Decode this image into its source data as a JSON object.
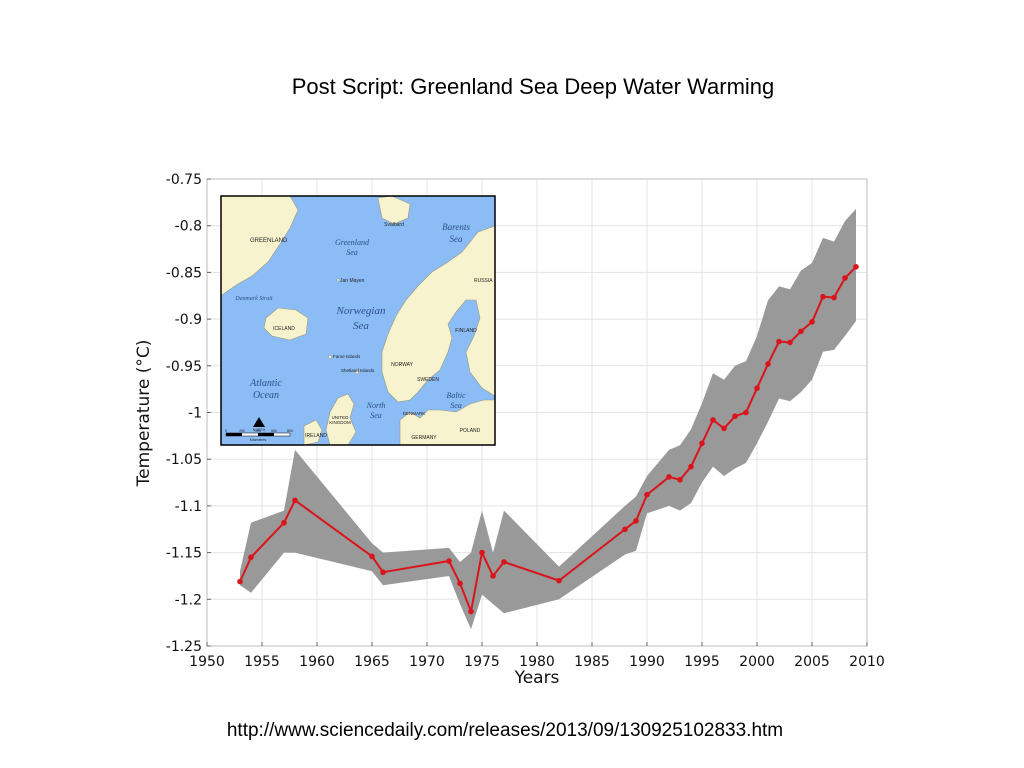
{
  "slide": {
    "title": "Post Script:  Greenland Sea Deep Water Warming",
    "source_url": "http://www.sciencedaily.com/releases/2013/09/130925102833.htm"
  },
  "colors": {
    "line": "#d9141a",
    "band": "#999999",
    "grid": "#e3e3e3",
    "sea": "#8bbcf5",
    "land": "#f7f3cf"
  },
  "chart_data": {
    "type": "line",
    "title": "",
    "xlabel": "Years",
    "ylabel": "Temperature (°C)",
    "xlim": [
      1950,
      2010
    ],
    "ylim": [
      -1.25,
      -0.75
    ],
    "xticks": [
      1950,
      1955,
      1960,
      1965,
      1970,
      1975,
      1980,
      1985,
      1990,
      1995,
      2000,
      2005,
      2010
    ],
    "yticks": [
      -1.25,
      -1.2,
      -1.15,
      -1.1,
      -1.05,
      -1,
      -0.95,
      -0.9,
      -0.85,
      -0.8,
      -0.75
    ],
    "grid": true,
    "series": [
      {
        "points": [
          [
            1953,
            -1.181
          ],
          [
            1954,
            -1.155
          ],
          [
            1957,
            -1.118
          ],
          [
            1958,
            -1.094
          ],
          [
            1965,
            -1.154
          ],
          [
            1966,
            -1.171
          ],
          [
            1972,
            -1.159
          ],
          [
            1973,
            -1.183
          ],
          [
            1974,
            -1.213
          ],
          [
            1975,
            -1.15
          ],
          [
            1976,
            -1.175
          ],
          [
            1977,
            -1.16
          ],
          [
            1982,
            -1.18
          ],
          [
            1988,
            -1.125
          ],
          [
            1989,
            -1.116
          ],
          [
            1990,
            -1.088
          ],
          [
            1992,
            -1.069
          ],
          [
            1993,
            -1.072
          ],
          [
            1994,
            -1.058
          ],
          [
            1995,
            -1.033
          ],
          [
            1996,
            -1.008
          ],
          [
            1997,
            -1.017
          ],
          [
            1998,
            -1.004
          ],
          [
            1999,
            -1.0
          ],
          [
            2000,
            -0.974
          ],
          [
            2001,
            -0.948
          ],
          [
            2002,
            -0.924
          ],
          [
            2003,
            -0.925
          ],
          [
            2004,
            -0.913
          ],
          [
            2005,
            -0.903
          ],
          [
            2006,
            -0.876
          ],
          [
            2007,
            -0.877
          ],
          [
            2008,
            -0.856
          ],
          [
            2009,
            -0.844
          ]
        ]
      }
    ],
    "uncertainty_band": {
      "upper": [
        [
          1953,
          -1.17
        ],
        [
          1954,
          -1.118
        ],
        [
          1957,
          -1.105
        ],
        [
          1958,
          -1.04
        ],
        [
          1965,
          -1.14
        ],
        [
          1966,
          -1.15
        ],
        [
          1972,
          -1.145
        ],
        [
          1973,
          -1.16
        ],
        [
          1974,
          -1.15
        ],
        [
          1975,
          -1.105
        ],
        [
          1976,
          -1.15
        ],
        [
          1977,
          -1.105
        ],
        [
          1982,
          -1.165
        ],
        [
          1988,
          -1.1
        ],
        [
          1989,
          -1.09
        ],
        [
          1990,
          -1.068
        ],
        [
          1992,
          -1.04
        ],
        [
          1993,
          -1.035
        ],
        [
          1994,
          -1.018
        ],
        [
          1995,
          -0.99
        ],
        [
          1996,
          -0.958
        ],
        [
          1997,
          -0.965
        ],
        [
          1998,
          -0.95
        ],
        [
          1999,
          -0.945
        ],
        [
          2000,
          -0.918
        ],
        [
          2001,
          -0.88
        ],
        [
          2002,
          -0.865
        ],
        [
          2003,
          -0.868
        ],
        [
          2004,
          -0.848
        ],
        [
          2005,
          -0.84
        ],
        [
          2006,
          -0.813
        ],
        [
          2007,
          -0.817
        ],
        [
          2008,
          -0.795
        ],
        [
          2009,
          -0.782
        ]
      ],
      "lower": [
        [
          1953,
          -1.185
        ],
        [
          1954,
          -1.193
        ],
        [
          1957,
          -1.15
        ],
        [
          1958,
          -1.15
        ],
        [
          1965,
          -1.17
        ],
        [
          1966,
          -1.185
        ],
        [
          1972,
          -1.175
        ],
        [
          1973,
          -1.205
        ],
        [
          1974,
          -1.232
        ],
        [
          1975,
          -1.195
        ],
        [
          1976,
          -1.205
        ],
        [
          1977,
          -1.215
        ],
        [
          1982,
          -1.2
        ],
        [
          1988,
          -1.152
        ],
        [
          1989,
          -1.148
        ],
        [
          1990,
          -1.108
        ],
        [
          1992,
          -1.1
        ],
        [
          1993,
          -1.105
        ],
        [
          1994,
          -1.097
        ],
        [
          1995,
          -1.075
        ],
        [
          1996,
          -1.058
        ],
        [
          1997,
          -1.068
        ],
        [
          1998,
          -1.06
        ],
        [
          1999,
          -1.054
        ],
        [
          2000,
          -1.033
        ],
        [
          2001,
          -1.01
        ],
        [
          2002,
          -0.985
        ],
        [
          2003,
          -0.988
        ],
        [
          2004,
          -0.978
        ],
        [
          2005,
          -0.965
        ],
        [
          2006,
          -0.935
        ],
        [
          2007,
          -0.933
        ],
        [
          2008,
          -0.918
        ],
        [
          2009,
          -0.902
        ]
      ]
    }
  },
  "map_inset": {
    "sea_labels": [
      "Greenland Sea",
      "Barents Sea",
      "Norwegian Sea",
      "Atlantic Ocean",
      "North Sea",
      "Baltic Sea",
      "Denmark Strait"
    ],
    "land_labels": [
      "GREENLAND",
      "Svalbard",
      "Jan Mayen",
      "RUSSIA",
      "ICELAND",
      "FINLAND",
      "Faroe Islands",
      "Shetland Islands",
      "NORWAY",
      "SWEDEN",
      "UNITED KINGDOM",
      "DENMARK",
      "IRELAND",
      "GERMANY",
      "POLAND"
    ],
    "scale_ticks": [
      "0",
      "200",
      "400",
      "600",
      "800"
    ],
    "scale_unit": "Kilometres",
    "north_label": "NORTH"
  }
}
